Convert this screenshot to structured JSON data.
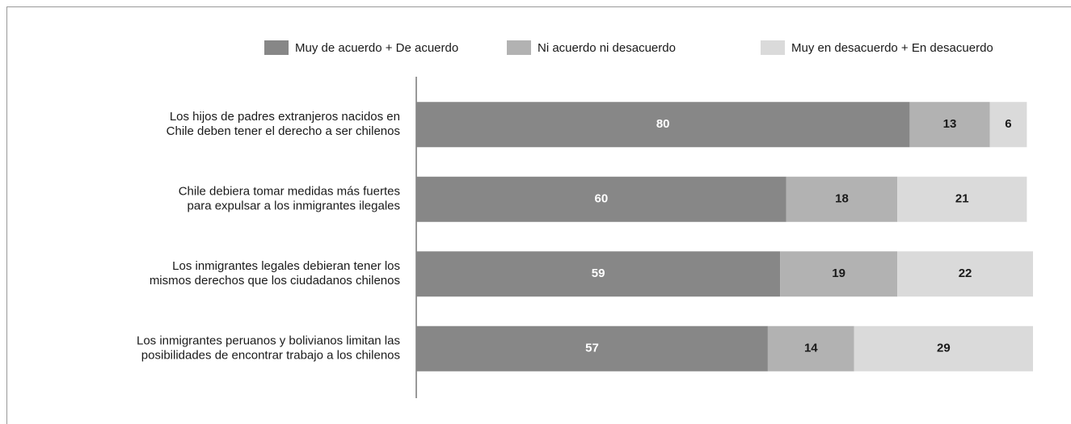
{
  "chart_data": {
    "type": "stacked_hbar",
    "categories": [
      [
        "Los hijos de padres extranjeros nacidos en",
        "Chile deben tener el derecho a ser chilenos"
      ],
      [
        "Chile debiera tomar medidas más fuertes",
        "para expulsar a los inmigrantes ilegales"
      ],
      [
        "Los inmigrantes legales debieran tener los",
        "mismos derechos que los ciudadanos chilenos"
      ],
      [
        "Los inmigrantes peruanos y bolivianos limitan las",
        "posibilidades de encontrar trabajo a los chilenos"
      ]
    ],
    "series": [
      {
        "name": "Muy de acuerdo +  De acuerdo",
        "color": "#878787",
        "label_color": "#ffffff",
        "values": [
          80,
          60,
          59,
          57
        ]
      },
      {
        "name": "Ni acuerdo ni desacuerdo",
        "color": "#b2b2b2",
        "label_color": "#1a1a1a",
        "values": [
          13,
          18,
          19,
          14
        ]
      },
      {
        "name": "Muy en desacuerdo + En desacuerdo",
        "color": "#dadada",
        "label_color": "#1a1a1a",
        "values": [
          6,
          21,
          22,
          29
        ]
      }
    ],
    "xlim": [
      0,
      100
    ],
    "legend": "top-right"
  }
}
